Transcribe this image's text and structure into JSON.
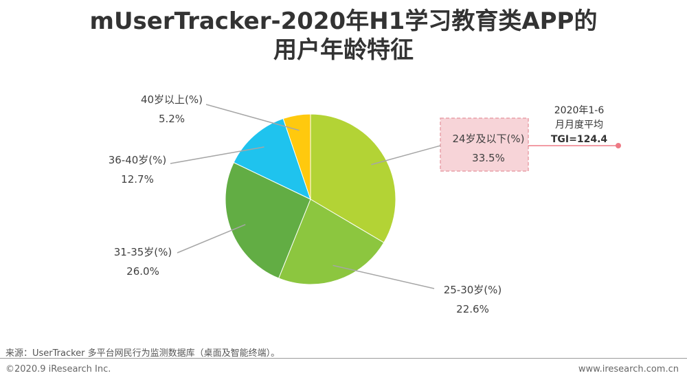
{
  "header": {
    "title_line1": "mUserTracker-2020年H1学习教育类APP的",
    "title_line2": "用户年龄特征"
  },
  "chart_data": {
    "type": "pie",
    "categories": [
      "24岁及以下(%)",
      "25-30岁(%)",
      "31-35岁(%)",
      "36-40岁(%)",
      "40岁以上(%)"
    ],
    "values": [
      33.5,
      22.6,
      26.0,
      12.7,
      5.2
    ],
    "value_labels": [
      "33.5%",
      "22.6%",
      "26.0%",
      "12.7%",
      "5.2%"
    ],
    "colors": [
      "#b3d335",
      "#8cc63f",
      "#62ad44",
      "#1fc3ee",
      "#ffc90e"
    ],
    "annotation": {
      "line1": "2020年1-6",
      "line2": "月月度平均",
      "line3": "TGI=124.4",
      "highlight_fill": "#f7d4d8",
      "highlight_border": "#e8a0a8",
      "marker_color": "#ee7a85"
    }
  },
  "footer": {
    "source": "来源：UserTracker 多平台网民行为监测数据库（桌面及智能终端）。",
    "copyright": "©2020.9 iResearch Inc.",
    "website": "www.iresearch.com.cn"
  }
}
